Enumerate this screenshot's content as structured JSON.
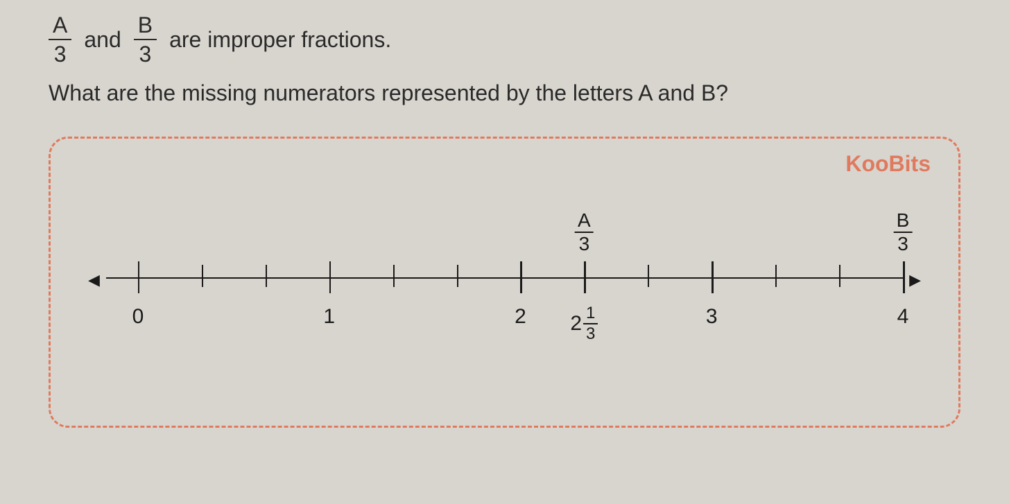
{
  "question": {
    "fraction_a": {
      "numerator": "A",
      "denominator": "3"
    },
    "connector_and": "and",
    "fraction_b": {
      "numerator": "B",
      "denominator": "3"
    },
    "line1_tail": "are improper fractions.",
    "line2": "What are the missing numerators represented by the letters A and B?"
  },
  "box": {
    "watermark": "KooBits",
    "border_color": "#e07a5f",
    "background": "#d8d5ce"
  },
  "numberline": {
    "arrow_left": "◀",
    "arrow_right": "▶",
    "ticks": [
      {
        "pos_pct": 4,
        "major": true,
        "bottom_label": "0"
      },
      {
        "pos_pct": 12,
        "major": false
      },
      {
        "pos_pct": 20,
        "major": false
      },
      {
        "pos_pct": 28,
        "major": true,
        "bottom_label": "1"
      },
      {
        "pos_pct": 36,
        "major": false
      },
      {
        "pos_pct": 44,
        "major": false
      },
      {
        "pos_pct": 52,
        "major": true,
        "bottom_label": "2"
      },
      {
        "pos_pct": 60,
        "major": true,
        "bottom_mixed": {
          "whole": "2",
          "num": "1",
          "den": "3"
        },
        "top_frac": {
          "num": "A",
          "den": "3"
        }
      },
      {
        "pos_pct": 68,
        "major": false
      },
      {
        "pos_pct": 76,
        "major": true,
        "bottom_label": "3"
      },
      {
        "pos_pct": 84,
        "major": false
      },
      {
        "pos_pct": 92,
        "major": false
      },
      {
        "pos_pct": 100,
        "major": true,
        "bottom_label": "4",
        "top_frac": {
          "num": "B",
          "den": "3"
        }
      }
    ]
  },
  "colors": {
    "text": "#2a2a2a",
    "line": "#1a1a1a",
    "dashed": "#e07a5f",
    "bg": "#d8d5ce"
  }
}
